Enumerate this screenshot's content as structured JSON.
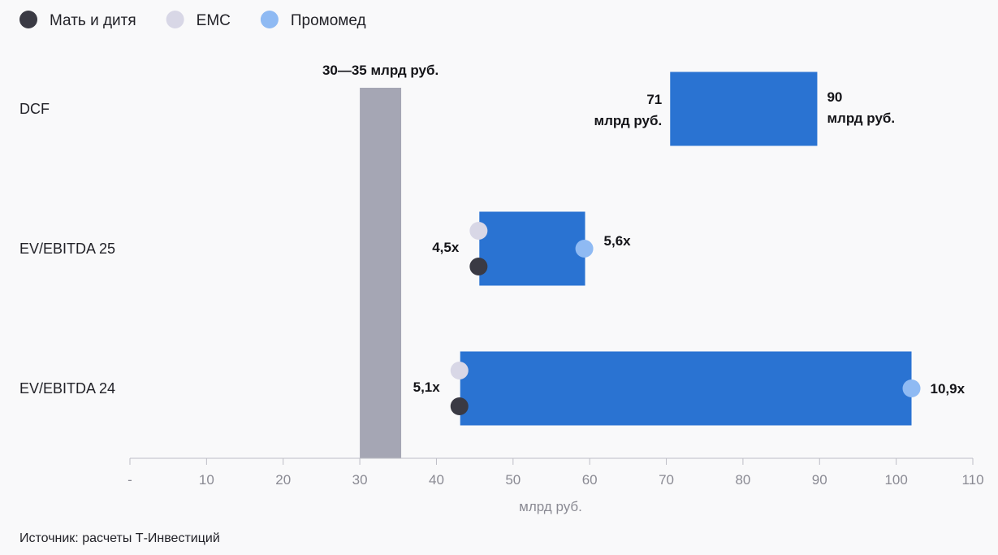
{
  "chart_data": {
    "type": "bar",
    "subtype": "floating-range",
    "title": "",
    "xlabel": "млрд руб.",
    "xlim": [
      0,
      110
    ],
    "x_ticks": [
      "-",
      "10",
      "20",
      "30",
      "40",
      "50",
      "60",
      "70",
      "80",
      "90",
      "100",
      "110"
    ],
    "legend": {
      "position": "top-left",
      "items": [
        {
          "name": "Мать и дитя",
          "color": "#3a3a44"
        },
        {
          "name": "EMC",
          "color": "#d8d7e6"
        },
        {
          "name": "Промомед",
          "color": "#8fbaf3"
        }
      ]
    },
    "reference_band": {
      "from": 30,
      "to": 35.4,
      "label": "30—35 млрд руб.",
      "color": "#a5a6b4"
    },
    "bar_color": "#2a73d2",
    "categories": [
      "DCF",
      "EV/EBITDA 25",
      "EV/EBITDA 24"
    ],
    "ranges": [
      {
        "category": "DCF",
        "start": 70.5,
        "end": 89.7,
        "start_label_lines": [
          "71",
          "млрд руб."
        ],
        "end_label_lines": [
          "90",
          "млрд руб."
        ],
        "markers": []
      },
      {
        "category": "EV/EBITDA 25",
        "start": 45.6,
        "end": 59.4,
        "start_label": "4,5x",
        "end_label": "5,6x",
        "markers": [
          {
            "series": "EMC",
            "value": 45.5,
            "row": "upper"
          },
          {
            "series": "Мать и дитя",
            "value": 45.5,
            "row": "lower"
          },
          {
            "series": "Промомед",
            "value": 59.3,
            "row": "middle"
          }
        ]
      },
      {
        "category": "EV/EBITDA 24",
        "start": 43.1,
        "end": 102,
        "start_label": "5,1x",
        "end_label": "10,9x",
        "markers": [
          {
            "series": "EMC",
            "value": 43.0,
            "row": "upper"
          },
          {
            "series": "Мать и дитя",
            "value": 43.0,
            "row": "lower"
          },
          {
            "series": "Промомед",
            "value": 102.0,
            "row": "middle"
          }
        ]
      }
    ]
  },
  "source_note": "Источник: расчеты Т-Инвестиций"
}
